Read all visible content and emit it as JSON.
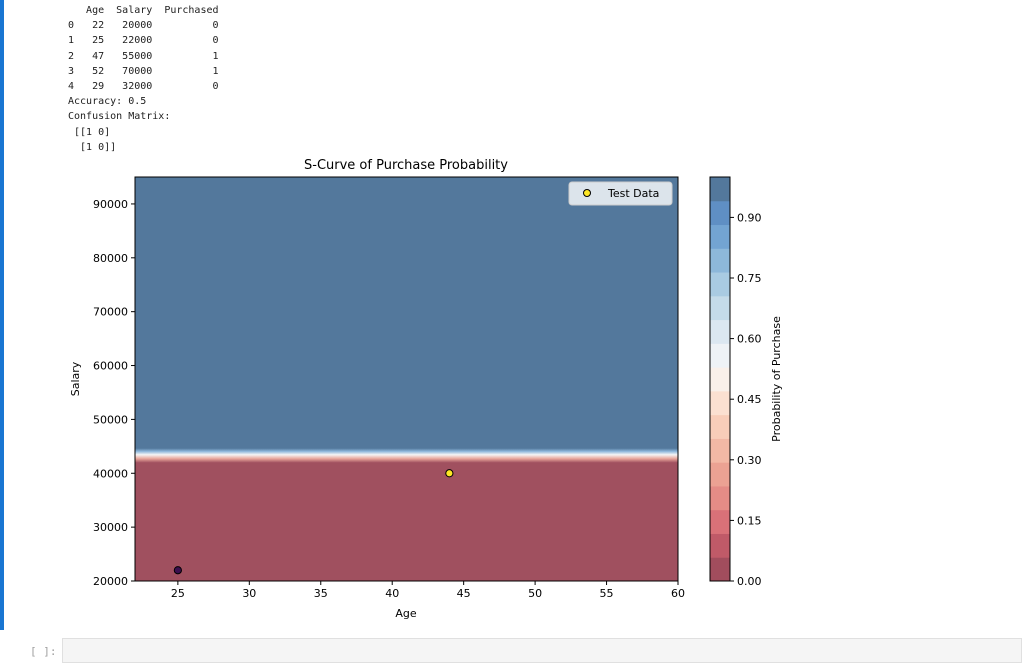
{
  "output": {
    "table_header": "   Age  Salary  Purchased",
    "table_rows": [
      "0   22   20000          0",
      "1   25   22000          0",
      "2   47   55000          1",
      "3   52   70000          1",
      "4   29   32000          0"
    ],
    "accuracy": "Accuracy: 0.5",
    "cm_title": "Confusion Matrix:",
    "cm_row1": " [[1 0]",
    "cm_row2": "  [1 0]]"
  },
  "chart_data": {
    "type": "heatmap",
    "title": "S-Curve of Purchase Probability",
    "xlabel": "Age",
    "ylabel": "Salary",
    "xlim": [
      22,
      60
    ],
    "ylim": [
      20000,
      95000
    ],
    "x_ticks": [
      25,
      30,
      35,
      40,
      45,
      50,
      55,
      60
    ],
    "y_ticks": [
      20000,
      30000,
      40000,
      50000,
      60000,
      70000,
      80000,
      90000
    ],
    "decision_boundary_salary": 43000,
    "colorbar": {
      "label": "Probability of Purchase",
      "ticks": [
        "0.00",
        "0.15",
        "0.30",
        "0.45",
        "0.60",
        "0.75",
        "0.90"
      ],
      "low_color": "#a0505f",
      "high_color": "#53789c"
    },
    "legend": {
      "label": "Test Data",
      "position": "top-right"
    },
    "points": [
      {
        "x": 25,
        "y": 22000,
        "color": "#3b0f4e"
      },
      {
        "x": 44,
        "y": 40000,
        "color": "#fde725"
      }
    ]
  },
  "next_cell": {
    "prompt": "[ ]:"
  }
}
